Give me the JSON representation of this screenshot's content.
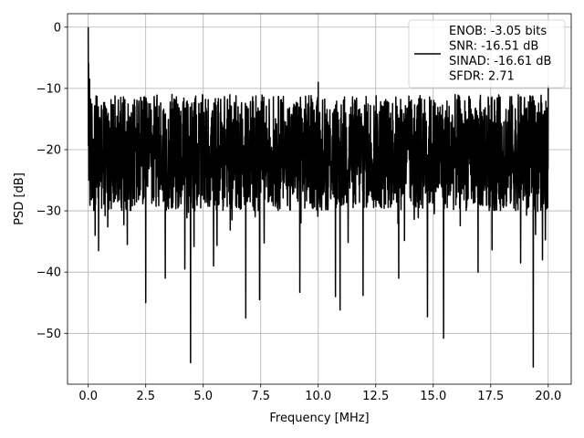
{
  "chart_data": {
    "type": "line",
    "title": "",
    "xlabel": "Frequency [MHz]",
    "ylabel": "PSD [dB]",
    "xlim": [
      -0.9,
      21.0
    ],
    "ylim": [
      -58.3,
      2.2
    ],
    "x_ticks": [
      0.0,
      2.5,
      5.0,
      7.5,
      10.0,
      12.5,
      15.0,
      17.5,
      20.0
    ],
    "x_tick_labels": [
      "0.0",
      "2.5",
      "5.0",
      "7.5",
      "10.0",
      "12.5",
      "15.0",
      "17.5",
      "20.0"
    ],
    "y_ticks": [
      0,
      -10,
      -20,
      -30,
      -40,
      -50
    ],
    "y_tick_labels": [
      "0",
      "−10",
      "−20",
      "−30",
      "−40",
      "−50"
    ],
    "grid": true,
    "legend_position": "top-right",
    "series": [
      {
        "name": "ENOB: -3.05 bits\nSNR: -16.51 dB\nSINAD: -16.61 dB\nSFDR: 2.71",
        "color": "#000000",
        "x_range": [
          0.0,
          20.0
        ],
        "baseline_db": -20.5,
        "fluctuation_db": [
          -30,
          -11
        ],
        "peaks": [
          {
            "x": 0.0,
            "y": 0.0
          },
          {
            "x": 0.02,
            "y": -6.0
          },
          {
            "x": 0.06,
            "y": -8.5
          },
          {
            "x": 10.0,
            "y": -9.0
          },
          {
            "x": 20.0,
            "y": -9.5
          }
        ],
        "dips": [
          {
            "x": 0.3,
            "y": -34.0
          },
          {
            "x": 0.45,
            "y": -36.5
          },
          {
            "x": 1.7,
            "y": -35.5
          },
          {
            "x": 2.5,
            "y": -45.0
          },
          {
            "x": 3.35,
            "y": -41.0
          },
          {
            "x": 4.2,
            "y": -39.5
          },
          {
            "x": 4.45,
            "y": -54.8
          },
          {
            "x": 5.45,
            "y": -39.0
          },
          {
            "x": 6.85,
            "y": -47.5
          },
          {
            "x": 7.45,
            "y": -44.5
          },
          {
            "x": 9.2,
            "y": -43.3
          },
          {
            "x": 10.75,
            "y": -44.0
          },
          {
            "x": 10.95,
            "y": -46.2
          },
          {
            "x": 11.95,
            "y": -43.8
          },
          {
            "x": 13.5,
            "y": -41.0
          },
          {
            "x": 14.75,
            "y": -47.3
          },
          {
            "x": 15.45,
            "y": -50.8
          },
          {
            "x": 16.95,
            "y": -40.0
          },
          {
            "x": 18.8,
            "y": -38.5
          },
          {
            "x": 19.35,
            "y": -55.5
          },
          {
            "x": 19.75,
            "y": -38.0
          }
        ]
      }
    ]
  }
}
